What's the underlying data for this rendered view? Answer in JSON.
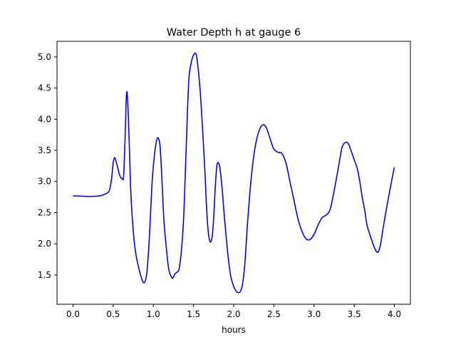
{
  "chart_data": {
    "type": "line",
    "title": "Water Depth h at gauge 6",
    "xlabel": "hours",
    "ylabel": "",
    "xlim": [
      -0.2,
      4.2
    ],
    "ylim": [
      1.03,
      5.25
    ],
    "xticks": [
      0.0,
      0.5,
      1.0,
      1.5,
      2.0,
      2.5,
      3.0,
      3.5,
      4.0
    ],
    "xtick_labels": [
      "0.0",
      "0.5",
      "1.0",
      "1.5",
      "2.0",
      "2.5",
      "3.0",
      "3.5",
      "4.0"
    ],
    "yticks": [
      1.5,
      2.0,
      2.5,
      3.0,
      3.5,
      4.0,
      4.5,
      5.0
    ],
    "ytick_labels": [
      "1.5",
      "2.0",
      "2.5",
      "3.0",
      "3.5",
      "4.0",
      "4.5",
      "5.0"
    ],
    "grid": false,
    "legend": "none",
    "series": [
      {
        "color": "#0000ff",
        "x": [
          0.0,
          0.1,
          0.2,
          0.3,
          0.35,
          0.4,
          0.45,
          0.48,
          0.5,
          0.52,
          0.55,
          0.58,
          0.61,
          0.63,
          0.65,
          0.665,
          0.68,
          0.7,
          0.72,
          0.75,
          0.78,
          0.82,
          0.86,
          0.89,
          0.92,
          0.95,
          0.98,
          1.0,
          1.02,
          1.05,
          1.08,
          1.1,
          1.13,
          1.16,
          1.19,
          1.22,
          1.24,
          1.27,
          1.3,
          1.32,
          1.35,
          1.38,
          1.41,
          1.44,
          1.47,
          1.5,
          1.53,
          1.55,
          1.58,
          1.61,
          1.64,
          1.67,
          1.7,
          1.73,
          1.75,
          1.77,
          1.79,
          1.81,
          1.83,
          1.855,
          1.88,
          1.9,
          1.93,
          1.96,
          1.99,
          2.02,
          2.05,
          2.08,
          2.11,
          2.14,
          2.17,
          2.2,
          2.23,
          2.26,
          2.3,
          2.35,
          2.4,
          2.45,
          2.47,
          2.5,
          2.55,
          2.6,
          2.65,
          2.7,
          2.75,
          2.8,
          2.85,
          2.9,
          2.95,
          3.0,
          3.05,
          3.1,
          3.15,
          3.2,
          3.25,
          3.3,
          3.35,
          3.4,
          3.43,
          3.46,
          3.5,
          3.54,
          3.57,
          3.6,
          3.63,
          3.66,
          3.7,
          3.74,
          3.77,
          3.8,
          3.83,
          3.86,
          3.9,
          3.95,
          4.0
        ],
        "y": [
          2.77,
          2.765,
          2.76,
          2.765,
          2.775,
          2.8,
          2.85,
          3.05,
          3.3,
          3.38,
          3.25,
          3.1,
          3.05,
          3.1,
          3.8,
          4.4,
          4.3,
          3.6,
          2.8,
          2.2,
          1.85,
          1.6,
          1.42,
          1.38,
          1.55,
          2.1,
          2.9,
          3.25,
          3.5,
          3.7,
          3.6,
          3.2,
          2.4,
          1.95,
          1.6,
          1.48,
          1.45,
          1.52,
          1.55,
          1.6,
          1.9,
          2.5,
          3.6,
          4.6,
          4.9,
          5.03,
          5.05,
          4.9,
          4.5,
          3.9,
          3.2,
          2.4,
          2.05,
          2.1,
          2.4,
          2.9,
          3.25,
          3.3,
          3.2,
          2.9,
          2.5,
          2.2,
          1.8,
          1.5,
          1.35,
          1.26,
          1.22,
          1.23,
          1.35,
          1.7,
          2.3,
          2.8,
          3.2,
          3.5,
          3.75,
          3.9,
          3.88,
          3.7,
          3.62,
          3.52,
          3.47,
          3.45,
          3.3,
          3.0,
          2.7,
          2.4,
          2.2,
          2.08,
          2.07,
          2.15,
          2.3,
          2.42,
          2.46,
          2.55,
          2.85,
          3.2,
          3.55,
          3.63,
          3.6,
          3.5,
          3.35,
          3.2,
          3.0,
          2.75,
          2.55,
          2.3,
          2.13,
          1.98,
          1.89,
          1.87,
          2.0,
          2.25,
          2.55,
          2.9,
          3.23
        ]
      }
    ]
  }
}
